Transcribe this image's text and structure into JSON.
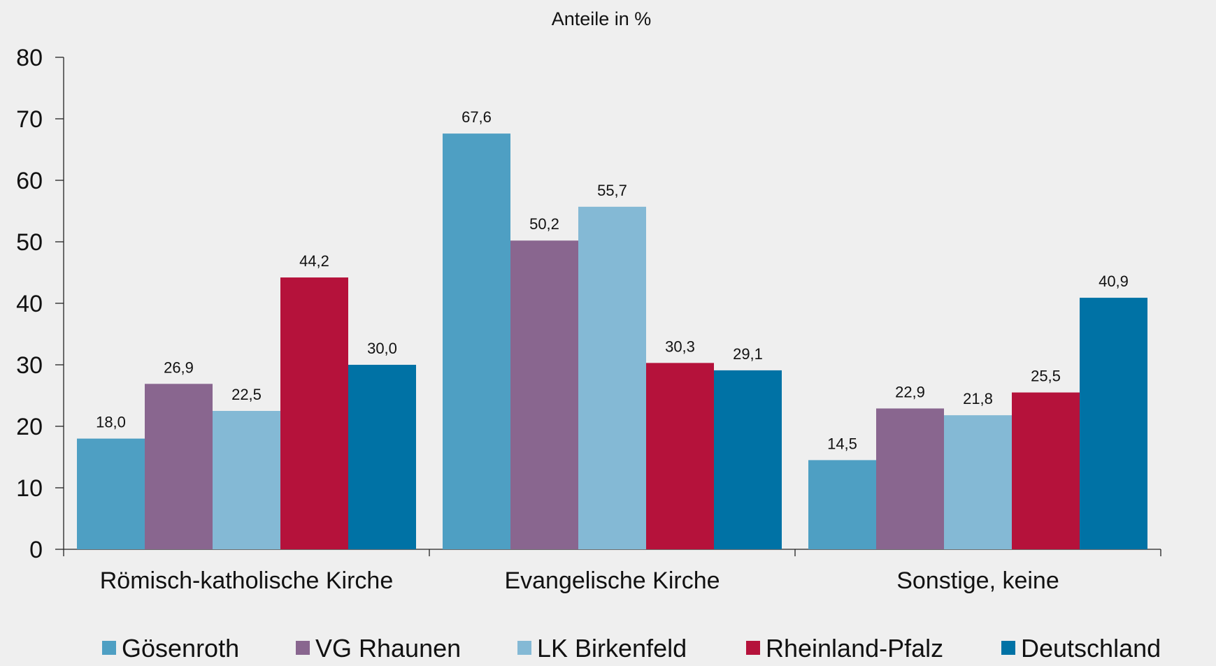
{
  "chart_data": {
    "type": "bar",
    "title": "Anteile in %",
    "xlabel": "",
    "ylabel": "",
    "ylim": [
      0,
      80
    ],
    "yticks": [
      0,
      10,
      20,
      30,
      40,
      50,
      60,
      70,
      80
    ],
    "grid": false,
    "legend_position": "bottom",
    "categories": [
      "Römisch-katholische Kirche",
      "Evangelische Kirche",
      "Sonstige, keine"
    ],
    "series": [
      {
        "name": "Gösenroth",
        "color": "#4e9fc3",
        "values": [
          18.0,
          67.6,
          14.5
        ],
        "labels": [
          "18,0",
          "67,6",
          "14,5"
        ]
      },
      {
        "name": "VG Rhaunen",
        "color": "#89668f",
        "values": [
          26.9,
          50.2,
          22.9
        ],
        "labels": [
          "26,9",
          "50,2",
          "22,9"
        ]
      },
      {
        "name": "LK Birkenfeld",
        "color": "#84b9d5",
        "values": [
          22.5,
          55.7,
          21.8
        ],
        "labels": [
          "22,5",
          "55,7",
          "21,8"
        ]
      },
      {
        "name": "Rheinland-Pfalz",
        "color": "#b5123b",
        "values": [
          44.2,
          30.3,
          25.5
        ],
        "labels": [
          "44,2",
          "30,3",
          "25,5"
        ]
      },
      {
        "name": "Deutschland",
        "color": "#0072a5",
        "values": [
          30.0,
          29.1,
          40.9
        ],
        "labels": [
          "30,0",
          "29,1",
          "40,9"
        ]
      }
    ]
  }
}
